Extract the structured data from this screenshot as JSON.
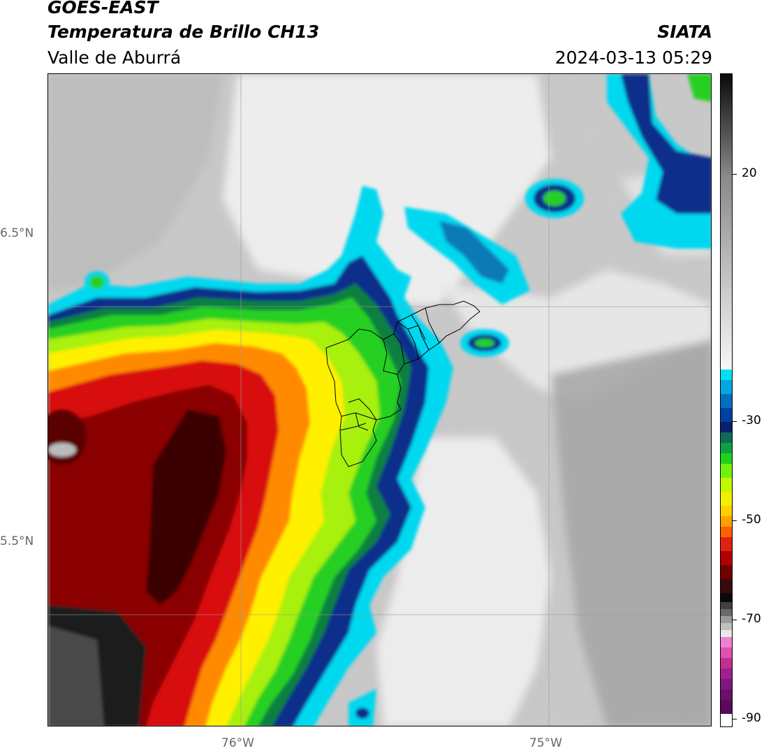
{
  "header": {
    "satellite": "GOES-EAST",
    "product": "Temperatura de Brillo CH13",
    "region": "Valle de Aburrá",
    "agency": "SIATA",
    "datetime": "2024-03-13 05:29"
  },
  "axes": {
    "lat_labels": [
      "6.5°N",
      "5.5°N"
    ],
    "lon_labels": [
      "76°W",
      "75°W"
    ]
  },
  "colorbar": {
    "labels": [
      "20",
      "-30",
      "-50",
      "-70",
      "-90"
    ],
    "units_hint": "°C"
  },
  "colors": {
    "cold_cloud_ramp": [
      "#ffffff",
      "#8b1a8b",
      "#e060c0",
      "#1a1a1a",
      "#5a0000",
      "#d01010",
      "#ff7000",
      "#ffe000",
      "#c0ff00",
      "#20c020",
      "#004a9a",
      "#00d8f0"
    ],
    "warm_ramp": [
      "#f5f5f5",
      "#c8c8c8",
      "#7a7a7a",
      "#3a3a3a",
      "#0a0a0a"
    ]
  }
}
